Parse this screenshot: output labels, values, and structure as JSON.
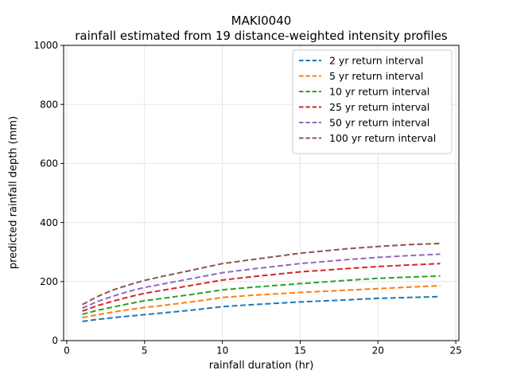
{
  "chart_data": {
    "type": "line",
    "title": "MAKI0040",
    "subtitle": "rainfall estimated from 19 distance-weighted intensity profiles",
    "xlabel": "rainfall duration (hr)",
    "ylabel": "predicted rainfall depth (mm)",
    "xlim": [
      -0.2,
      25.2
    ],
    "ylim": [
      0,
      1000
    ],
    "xticks": [
      0,
      5,
      10,
      15,
      20,
      25
    ],
    "yticks": [
      0,
      200,
      400,
      600,
      800,
      1000
    ],
    "grid": true,
    "grid_color": "#e6e6e6",
    "spine_color": "#000000",
    "line_style": "dashed",
    "legend_position": "upper-right",
    "x": [
      1,
      2,
      3,
      4,
      5,
      6,
      8,
      10,
      12,
      15,
      18,
      20,
      22,
      24
    ],
    "series": [
      {
        "name": "2 yr return interval",
        "color": "#1f77b4",
        "values": [
          65,
          72,
          78,
          83,
          88,
          93,
          103,
          115,
          122,
          131,
          138,
          143,
          146,
          149
        ]
      },
      {
        "name": "5 yr return interval",
        "color": "#ff7f0e",
        "values": [
          78,
          88,
          97,
          105,
          112,
          118,
          131,
          146,
          154,
          163,
          171,
          176,
          181,
          186
        ]
      },
      {
        "name": "10 yr return interval",
        "color": "#2ca02c",
        "values": [
          89,
          103,
          114,
          125,
          135,
          142,
          156,
          172,
          181,
          193,
          204,
          211,
          215,
          219
        ]
      },
      {
        "name": "25 yr return interval",
        "color": "#d62728",
        "values": [
          100,
          119,
          134,
          148,
          160,
          169,
          187,
          205,
          217,
          233,
          244,
          251,
          256,
          261
        ]
      },
      {
        "name": "50 yr return interval",
        "color": "#9467bd",
        "values": [
          110,
          133,
          151,
          167,
          180,
          190,
          210,
          230,
          243,
          261,
          274,
          282,
          288,
          293
        ]
      },
      {
        "name": "100 yr return interval",
        "color": "#8c564b",
        "values": [
          122,
          150,
          172,
          189,
          204,
          216,
          238,
          261,
          275,
          296,
          311,
          319,
          325,
          329
        ]
      }
    ]
  }
}
